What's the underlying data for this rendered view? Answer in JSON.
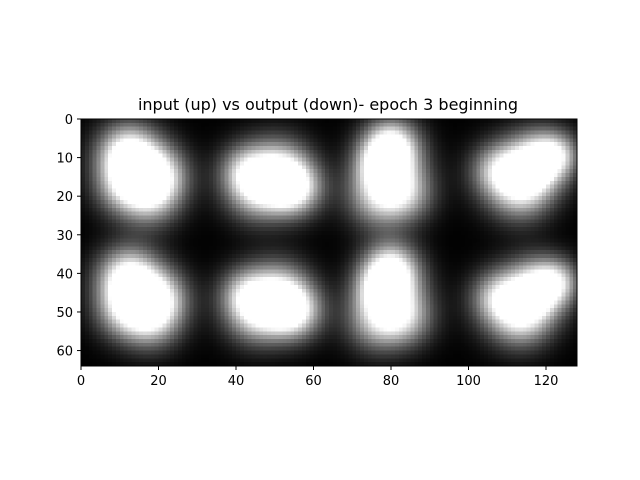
{
  "chart_data": {
    "type": "heatmap",
    "title": "input (up) vs output (down)- epoch 3 beginning",
    "xlabel": "",
    "ylabel": "",
    "xlim": [
      0,
      128
    ],
    "ylim": [
      64,
      0
    ],
    "colormap": "gray",
    "background_color": "#000000",
    "x_ticks": [
      0,
      20,
      40,
      60,
      80,
      100,
      120
    ],
    "y_ticks": [
      0,
      10,
      20,
      30,
      40,
      50,
      60
    ],
    "grid": false,
    "legend": "none",
    "image_grid": {
      "rows": 2,
      "cols": 4,
      "tile_size": 32,
      "row_labels": [
        "input",
        "output"
      ]
    },
    "tiles": [
      {
        "row": 0,
        "col": 0,
        "bright_spot": [
          12,
          8
        ],
        "dark_center": [
          16,
          15
        ],
        "blobs": [
          [
            12,
            9,
            5.5,
            1.0
          ],
          [
            16,
            15,
            6.5,
            0.55
          ],
          [
            18,
            20,
            5.5,
            0.6
          ],
          [
            21,
            14,
            5,
            0.45
          ],
          [
            10,
            18,
            5,
            0.4
          ]
        ]
      },
      {
        "row": 0,
        "col": 1,
        "bright_spot": [
          55,
          18
        ],
        "dark_center": [
          47,
          15
        ],
        "blobs": [
          [
            55,
            18,
            5,
            0.95
          ],
          [
            47,
            15,
            6.5,
            0.55
          ],
          [
            45,
            19,
            5.5,
            0.5
          ],
          [
            52,
            12,
            5.5,
            0.45
          ],
          [
            42,
            13,
            4.5,
            0.4
          ]
        ]
      },
      {
        "row": 0,
        "col": 2,
        "bright_spot": [
          80,
          7
        ],
        "dark_center": [
          80,
          15
        ],
        "blobs": [
          [
            80,
            7,
            5,
            1.0
          ],
          [
            80,
            15,
            6.5,
            0.6
          ],
          [
            76,
            21,
            5.5,
            0.5
          ],
          [
            84,
            20,
            5,
            0.45
          ],
          [
            77,
            12,
            4.5,
            0.45
          ]
        ]
      },
      {
        "row": 0,
        "col": 3,
        "bright_spot": [
          118,
          11
        ],
        "dark_center": [
          111,
          15
        ],
        "blobs": [
          [
            118,
            11,
            5.5,
            0.95
          ],
          [
            111,
            15,
            6.5,
            0.55
          ],
          [
            114,
            19,
            5.5,
            0.5
          ],
          [
            107,
            13,
            4.5,
            0.4
          ],
          [
            123,
            9,
            4,
            0.5
          ]
        ]
      },
      {
        "row": 1,
        "col": 0,
        "bright_spot": [
          12,
          40
        ],
        "dark_center": [
          16,
          47
        ],
        "blobs": [
          [
            12,
            41,
            5.5,
            0.95
          ],
          [
            16,
            47,
            6.5,
            0.55
          ],
          [
            18,
            52,
            5.5,
            0.6
          ],
          [
            21,
            46,
            5,
            0.45
          ],
          [
            10,
            50,
            5,
            0.4
          ]
        ]
      },
      {
        "row": 1,
        "col": 1,
        "bright_spot": [
          55,
          50
        ],
        "dark_center": [
          47,
          47
        ],
        "blobs": [
          [
            55,
            50,
            5,
            0.9
          ],
          [
            47,
            47,
            6.5,
            0.55
          ],
          [
            45,
            51,
            5.5,
            0.5
          ],
          [
            52,
            44,
            5.5,
            0.45
          ],
          [
            42,
            45,
            4.5,
            0.4
          ]
        ]
      },
      {
        "row": 1,
        "col": 2,
        "bright_spot": [
          80,
          39
        ],
        "dark_center": [
          80,
          47
        ],
        "blobs": [
          [
            80,
            39,
            5,
            0.95
          ],
          [
            80,
            47,
            6.5,
            0.6
          ],
          [
            76,
            53,
            5.5,
            0.5
          ],
          [
            84,
            52,
            5,
            0.45
          ],
          [
            77,
            44,
            4.5,
            0.45
          ]
        ]
      },
      {
        "row": 1,
        "col": 3,
        "bright_spot": [
          118,
          44
        ],
        "dark_center": [
          111,
          48
        ],
        "blobs": [
          [
            118,
            44,
            5.5,
            0.9
          ],
          [
            111,
            48,
            6.5,
            0.55
          ],
          [
            114,
            52,
            5.5,
            0.5
          ],
          [
            107,
            46,
            4.5,
            0.4
          ],
          [
            123,
            42,
            4,
            0.5
          ]
        ]
      }
    ]
  }
}
